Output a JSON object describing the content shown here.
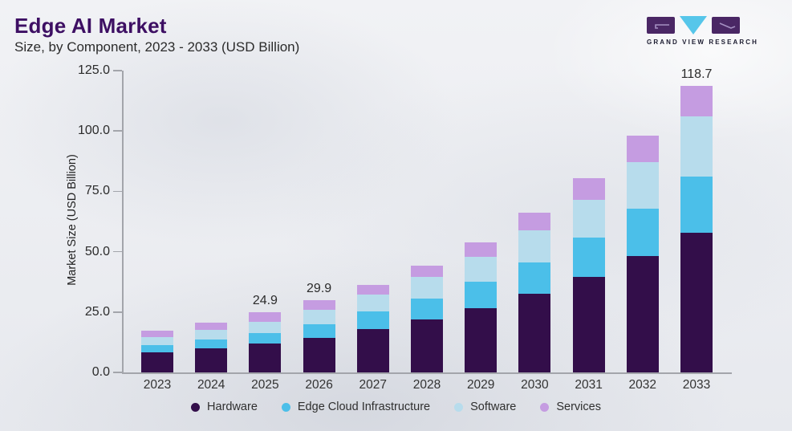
{
  "header": {
    "title": "Edge AI Market",
    "subtitle": "Size, by Component, 2023 - 2033 (USD Billion)",
    "brand_name": "GRAND VIEW RESEARCH"
  },
  "chart_data": {
    "type": "bar",
    "stacked": true,
    "title": "Edge AI Market, Size, by Component, 2023 - 2033 (USD Billion)",
    "xlabel": "",
    "ylabel": "Market Size (USD Billion)",
    "ylim": [
      0,
      125
    ],
    "ytick_values": [
      0,
      25,
      50,
      75,
      100,
      125
    ],
    "ytick_labels": [
      "0.0",
      "25.0",
      "50.0",
      "75.0",
      "100.0",
      "125.0"
    ],
    "grid": false,
    "legend_position": "bottom",
    "categories": [
      "2023",
      "2024",
      "2025",
      "2026",
      "2027",
      "2028",
      "2029",
      "2030",
      "2031",
      "2032",
      "2033"
    ],
    "series": [
      {
        "name": "Hardware",
        "color": "#330e4a",
        "values": [
          8.3,
          9.9,
          11.9,
          14.4,
          17.9,
          21.8,
          26.6,
          32.5,
          39.6,
          48.2,
          57.7
        ]
      },
      {
        "name": "Edge Cloud Infrastructure",
        "color": "#4bbfe9",
        "values": [
          3.0,
          3.8,
          4.5,
          5.7,
          7.3,
          8.9,
          10.8,
          12.9,
          16.1,
          19.6,
          23.3
        ]
      },
      {
        "name": "Software",
        "color": "#b7dcec",
        "values": [
          3.2,
          3.8,
          4.5,
          5.7,
          7.0,
          8.7,
          10.5,
          13.5,
          15.9,
          19.3,
          25.1
        ]
      },
      {
        "name": "Services",
        "color": "#c59ce1",
        "values": [
          2.7,
          3.2,
          4.0,
          4.1,
          4.2,
          4.9,
          6.0,
          7.4,
          9.0,
          10.9,
          12.6
        ]
      }
    ],
    "bar_total_labels": [
      {
        "category": "2025",
        "label": "24.9"
      },
      {
        "category": "2026",
        "label": "29.9"
      },
      {
        "category": "2033",
        "label": "118.7"
      }
    ]
  }
}
